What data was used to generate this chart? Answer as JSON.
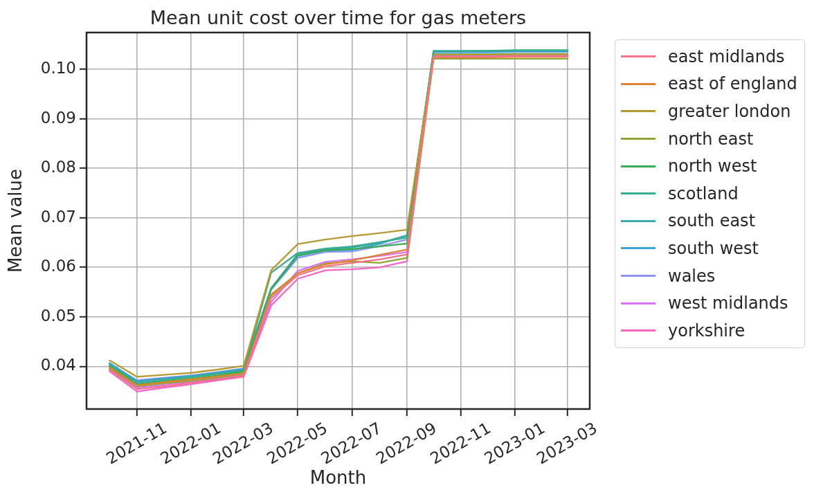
{
  "chart_data": {
    "type": "line",
    "title": "Mean unit cost over time for gas meters",
    "xlabel": "Month",
    "ylabel": "Mean value",
    "x": [
      "2021-10",
      "2021-11",
      "2021-12",
      "2022-01",
      "2022-02",
      "2022-03",
      "2022-04",
      "2022-05",
      "2022-06",
      "2022-07",
      "2022-08",
      "2022-09",
      "2022-10",
      "2022-11",
      "2022-12",
      "2023-01",
      "2023-02",
      "2023-03"
    ],
    "series": [
      {
        "name": "east midlands",
        "color": "#f77189",
        "values": [
          0.0393,
          0.0354,
          0.036,
          0.0367,
          0.0374,
          0.0381,
          0.0538,
          0.0584,
          0.0602,
          0.0609,
          0.0616,
          0.0626,
          0.1025,
          0.1025,
          0.1025,
          0.1026,
          0.1026,
          0.1026
        ]
      },
      {
        "name": "east of england",
        "color": "#e0832f",
        "values": [
          0.0398,
          0.0362,
          0.0368,
          0.0374,
          0.038,
          0.0386,
          0.0545,
          0.0588,
          0.0606,
          0.0614,
          0.0625,
          0.0636,
          0.1024,
          0.1024,
          0.1024,
          0.1025,
          0.1025,
          0.1025
        ]
      },
      {
        "name": "greater london",
        "color": "#b59a32",
        "values": [
          0.0412,
          0.0379,
          0.0383,
          0.0387,
          0.0394,
          0.0401,
          0.0594,
          0.0647,
          0.0656,
          0.0663,
          0.0669,
          0.0676,
          0.1029,
          0.1029,
          0.1029,
          0.103,
          0.103,
          0.103
        ]
      },
      {
        "name": "north east",
        "color": "#8fa632",
        "values": [
          0.0396,
          0.036,
          0.0366,
          0.0371,
          0.0378,
          0.0385,
          0.0543,
          0.0588,
          0.0608,
          0.0612,
          0.0609,
          0.0619,
          0.1021,
          0.1021,
          0.1021,
          0.1021,
          0.1021,
          0.1021
        ]
      },
      {
        "name": "north west",
        "color": "#38ac53",
        "values": [
          0.04,
          0.0363,
          0.0369,
          0.0375,
          0.0382,
          0.0389,
          0.0556,
          0.0624,
          0.0634,
          0.0637,
          0.0642,
          0.0648,
          0.103,
          0.103,
          0.103,
          0.1031,
          0.1031,
          0.1031
        ]
      },
      {
        "name": "scotland",
        "color": "#36ad8f",
        "values": [
          0.0402,
          0.0366,
          0.0372,
          0.0378,
          0.0385,
          0.0391,
          0.0589,
          0.0629,
          0.0638,
          0.0642,
          0.0651,
          0.066,
          0.1036,
          0.1036,
          0.1037,
          0.1038,
          0.1038,
          0.1038
        ]
      },
      {
        "name": "south east",
        "color": "#38aaac",
        "values": [
          0.0404,
          0.0369,
          0.0375,
          0.038,
          0.0387,
          0.0393,
          0.0558,
          0.0627,
          0.0636,
          0.064,
          0.0649,
          0.0664,
          0.1037,
          0.1037,
          0.1037,
          0.1038,
          0.1038,
          0.1038
        ]
      },
      {
        "name": "south west",
        "color": "#3ba3d6",
        "values": [
          0.0407,
          0.037,
          0.0376,
          0.0381,
          0.0388,
          0.0395,
          0.0557,
          0.0623,
          0.0634,
          0.0635,
          0.0647,
          0.0665,
          0.1035,
          0.1035,
          0.1035,
          0.1036,
          0.1036,
          0.1036
        ]
      },
      {
        "name": "wales",
        "color": "#8d92f4",
        "values": [
          0.0405,
          0.0372,
          0.0377,
          0.0382,
          0.0389,
          0.0396,
          0.0555,
          0.0619,
          0.0631,
          0.0632,
          0.0643,
          0.0656,
          0.1034,
          0.1034,
          0.1034,
          0.1035,
          0.1035,
          0.1035
        ]
      },
      {
        "name": "west midlands",
        "color": "#da72f4",
        "values": [
          0.0394,
          0.0357,
          0.0363,
          0.0369,
          0.0376,
          0.0383,
          0.053,
          0.0593,
          0.0611,
          0.0616,
          0.0623,
          0.0631,
          0.1027,
          0.1027,
          0.1027,
          0.1028,
          0.1028,
          0.1028
        ]
      },
      {
        "name": "yorkshire",
        "color": "#f566c6",
        "values": [
          0.039,
          0.0349,
          0.0357,
          0.0364,
          0.0372,
          0.0379,
          0.0523,
          0.0577,
          0.0594,
          0.0596,
          0.06,
          0.0612,
          0.1027,
          0.1027,
          0.1027,
          0.1027,
          0.1027,
          0.1027
        ]
      }
    ],
    "xlim": [
      "2021-09-05",
      "2023-03-26"
    ],
    "ylim": [
      0.0314,
      0.1074
    ],
    "xticks": [
      "2021-11",
      "2022-01",
      "2022-03",
      "2022-05",
      "2022-07",
      "2022-09",
      "2022-11",
      "2023-01",
      "2023-03"
    ],
    "yticks": [
      0.04,
      0.05,
      0.06,
      0.07,
      0.08,
      0.09,
      {
        "value": 0.1,
        "label": "0.10"
      }
    ],
    "grid": true,
    "legend": "right"
  }
}
